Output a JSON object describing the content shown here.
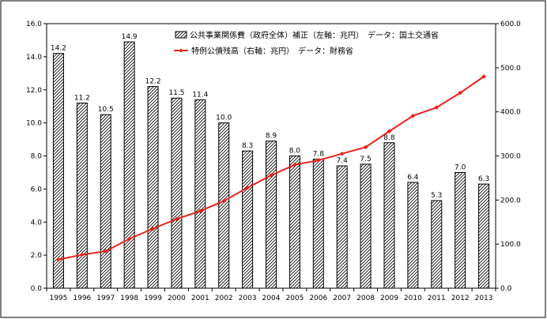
{
  "chart_data": {
    "type": "bar+line",
    "categories": [
      "1995",
      "1996",
      "1997",
      "1998",
      "1999",
      "2000",
      "2001",
      "2002",
      "2003",
      "2004",
      "2005",
      "2006",
      "2007",
      "2008",
      "2009",
      "2010",
      "2011",
      "2012",
      "2013"
    ],
    "series": [
      {
        "name": "公共事業関係費（政府全体）補正（左軸：兆円）　データ：国土交通省",
        "type": "bar",
        "axis": "left",
        "values": [
          14.2,
          11.2,
          10.5,
          14.9,
          12.2,
          11.5,
          11.4,
          10.0,
          8.3,
          8.9,
          8.0,
          7.8,
          7.4,
          7.5,
          8.8,
          6.4,
          5.3,
          7.0,
          6.3
        ],
        "data_labels": [
          "14.2",
          "11.2",
          "10.5",
          "14.9",
          "12.2",
          "11.5",
          "11.4",
          "10.0",
          "8.3",
          "8.9",
          "8.0",
          "7.8",
          "7.4",
          "7.5",
          "8.8",
          "6.4",
          "5.3",
          "7.0",
          "6.3"
        ]
      },
      {
        "name": "特例公債残高（右軸：兆円）　データ：財務省",
        "type": "line",
        "axis": "right",
        "color": "#e8221b",
        "values": [
          65,
          76,
          84,
          112,
          135,
          157,
          175,
          198,
          228,
          256,
          280,
          290,
          305,
          320,
          356,
          391,
          410,
          443,
          480
        ]
      }
    ],
    "y_left": {
      "range": [
        0,
        16
      ],
      "tick_labels": [
        "0.0",
        "2.0",
        "4.0",
        "6.0",
        "8.0",
        "10.0",
        "12.0",
        "14.0",
        "16.0"
      ]
    },
    "y_right": {
      "range": [
        0,
        600
      ],
      "tick_labels": [
        "0.0",
        "100.0",
        "200.0",
        "300.0",
        "400.0",
        "500.0",
        "600.0"
      ]
    },
    "grid": false,
    "legend_position": "top-right"
  }
}
